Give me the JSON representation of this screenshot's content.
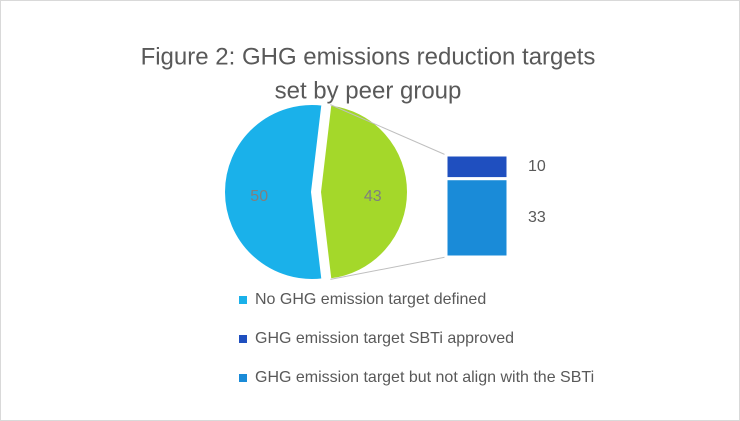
{
  "chart_data": {
    "type": "barofpie",
    "title_lines": [
      "Figure 2: GHG emissions reduction targets",
      "set by peer group"
    ],
    "categories": [
      "No GHG emission target defined",
      null
    ],
    "values": [
      50,
      43
    ],
    "colors": [
      "#1ab1ea",
      "#a4d82a"
    ],
    "breakdown": {
      "categories": [
        "GHG emission target SBTi approved",
        "GHG emission target but not align with the SBTi"
      ],
      "values": [
        10,
        33
      ],
      "colors": [
        "#1f4fbf",
        "#1a8bd8"
      ]
    }
  }
}
